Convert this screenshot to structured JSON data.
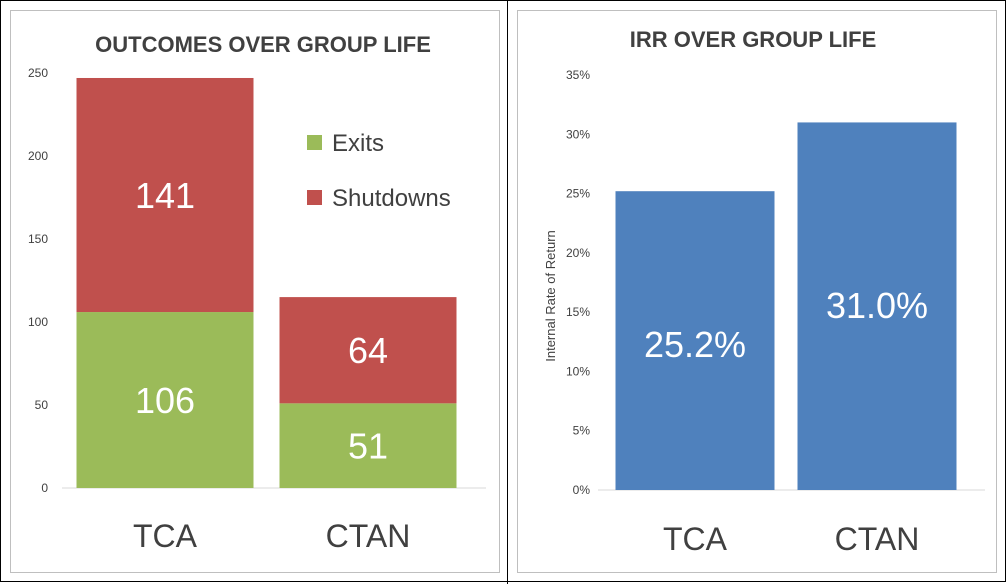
{
  "chart_data": [
    {
      "type": "bar",
      "stacked": true,
      "title": "OUTCOMES OVER GROUP LIFE",
      "categories": [
        "TCA",
        "CTAN"
      ],
      "series": [
        {
          "name": "Exits",
          "values": [
            106,
            51
          ],
          "color": "#9bbb59"
        },
        {
          "name": "Shutdowns",
          "values": [
            141,
            64
          ],
          "color": "#c0504d"
        }
      ],
      "ylim": [
        0,
        250
      ],
      "yticks": [
        "0",
        "50",
        "100",
        "150",
        "200",
        "250"
      ],
      "xlabel": "",
      "ylabel": "",
      "grid": false,
      "legend": "right"
    },
    {
      "type": "bar",
      "title": "IRR OVER GROUP LIFE",
      "categories": [
        "TCA",
        "CTAN"
      ],
      "values": [
        25.2,
        31.0
      ],
      "data_labels": [
        "25.2%",
        "31.0%"
      ],
      "color": "#4f81bd",
      "ylim": [
        0,
        35
      ],
      "yticks": [
        "0%",
        "5%",
        "10%",
        "15%",
        "20%",
        "25%",
        "30%",
        "35%"
      ],
      "xlabel": "",
      "ylabel": "Internal Rate of Return",
      "grid": false,
      "legend": "none"
    }
  ]
}
